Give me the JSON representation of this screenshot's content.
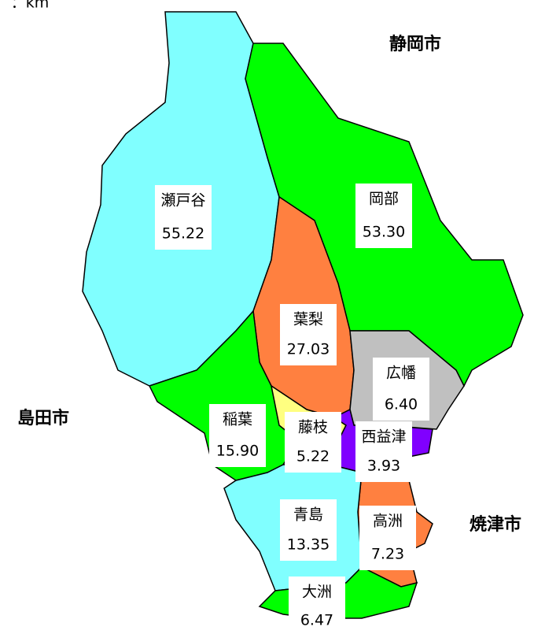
{
  "unit": "：km",
  "cities": [
    "静岡市",
    "島田市",
    "焼津市"
  ],
  "regions": [
    {
      "name": "瀬戸谷",
      "area": "55.22"
    },
    {
      "name": "岡部",
      "area": "53.30"
    },
    {
      "name": "葉梨",
      "area": "27.03"
    },
    {
      "name": "広幡",
      "area": "6.40"
    },
    {
      "name": "稲葉",
      "area": "15.90"
    },
    {
      "name": "藤枝",
      "area": "5.22"
    },
    {
      "name": "西益津",
      "area": "3.93"
    },
    {
      "name": "青島",
      "area": "13.35"
    },
    {
      "name": "高洲",
      "area": "7.23"
    },
    {
      "name": "大洲",
      "area": "6.47"
    }
  ]
}
